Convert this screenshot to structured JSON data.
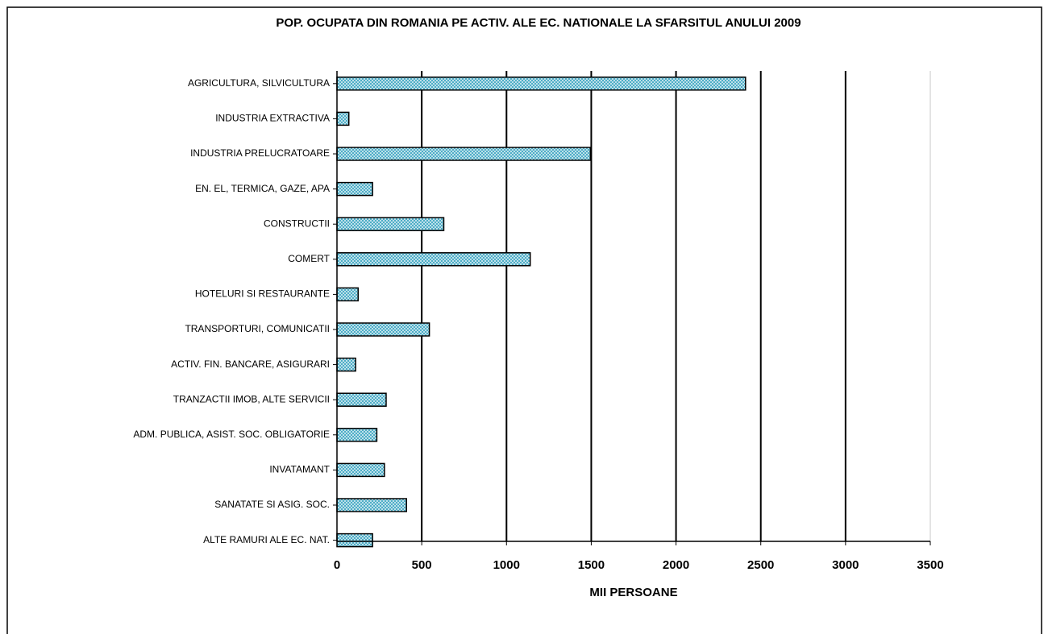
{
  "chart_data": {
    "type": "barh",
    "title": "POP. OCUPATA DIN ROMANIA PE ACTIV. ALE EC. NATIONALE LA SFARSITUL ANULUI 2009",
    "x_label": "MII PERSOANE",
    "categories": [
      "AGRICULTURA, SILVICULTURA",
      "INDUSTRIA EXTRACTIVA",
      "INDUSTRIA PRELUCRATOARE",
      "EN. EL, TERMICA, GAZE, APA",
      "CONSTRUCTII",
      "COMERT",
      "HOTELURI SI RESTAURANTE",
      "TRANSPORTURI, COMUNICATII",
      "ACTIV. FIN. BANCARE, ASIGURARI",
      "TRANZACTII IMOB, ALTE SERVICII",
      "ADM. PUBLICA, ASIST. SOC. OBLIGATORIE",
      "INVATAMANT",
      "SANATATE SI ASIG. SOC.",
      "ALTE RAMURI ALE EC. NAT."
    ],
    "values": [
      2410,
      70,
      1495,
      210,
      630,
      1140,
      125,
      545,
      110,
      290,
      235,
      280,
      410,
      210
    ],
    "color": "#4bacc6",
    "xlim": [
      0,
      3500
    ],
    "xticks": [
      0,
      500,
      1000,
      1500,
      2000,
      2500,
      3000,
      3500
    ],
    "grid": true
  }
}
